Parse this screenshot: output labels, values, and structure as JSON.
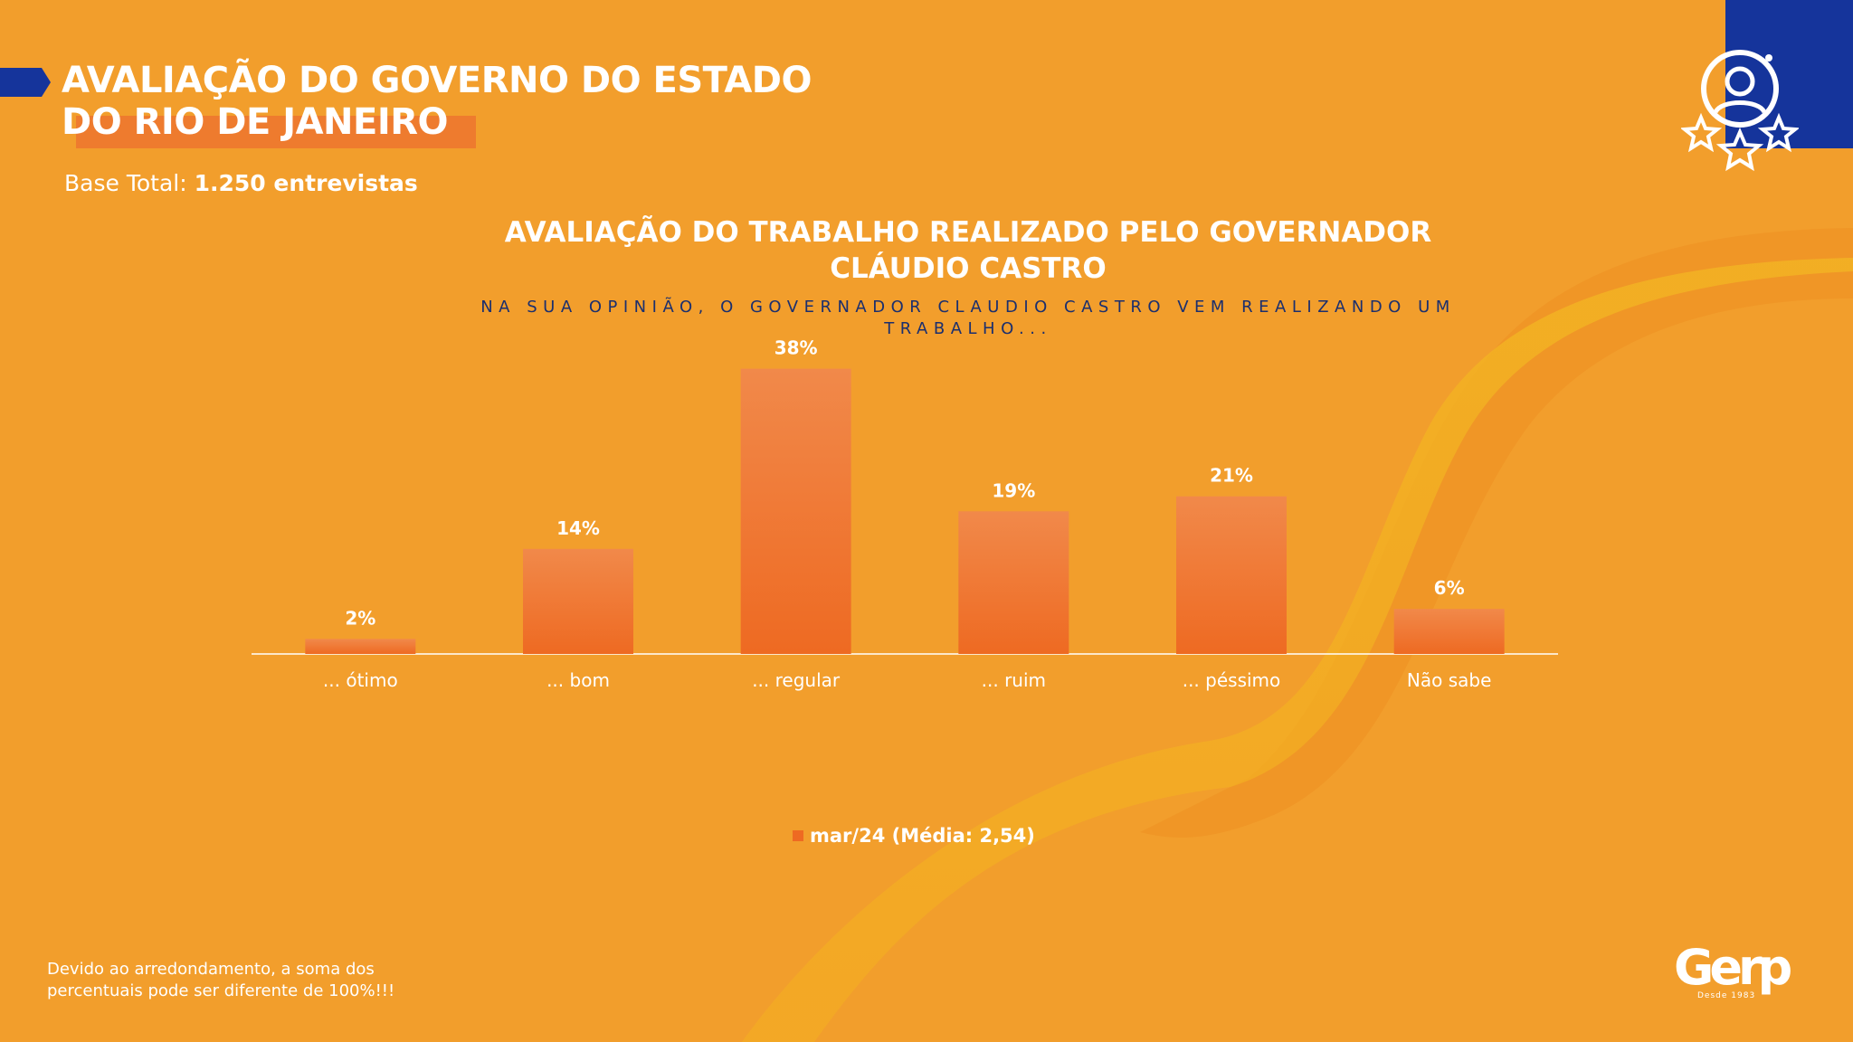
{
  "header": {
    "title": "AVALIAÇÃO DO GOVERNO DO ESTADO DO RIO DE JANEIRO",
    "base_label": "Base Total:",
    "base_value": "1.250 entrevistas"
  },
  "icons": {
    "badge": "user-award-icon"
  },
  "chart_data": {
    "type": "bar",
    "title": "AVALIAÇÃO DO TRABALHO REALIZADO PELO GOVERNADOR CLÁUDIO CASTRO",
    "subtitle": "NA SUA OPINIÃO, O GOVERNADOR CLAUDIO CASTRO VEM REALIZANDO UM TRABALHO...",
    "categories": [
      "... ótimo",
      "... bom",
      "... regular",
      "... ruim",
      "... péssimo",
      "Não sabe"
    ],
    "series": [
      {
        "name": "mar/24 (Média: 2,54)",
        "values": [
          2,
          14,
          38,
          19,
          21,
          6
        ],
        "labels": [
          "2%",
          "14%",
          "38%",
          "19%",
          "21%",
          "6%"
        ],
        "color": "#EE6A22"
      }
    ],
    "ylim": [
      0,
      40
    ],
    "grid": false,
    "legend": "bottom-center"
  },
  "footnote": "Devido ao arredondamento, a soma dos percentuais pode ser diferente de 100%!!!",
  "brand": {
    "logo": "Gerp",
    "tagline": "Desde 1983"
  },
  "colors": {
    "background": "#F29E2C",
    "accent_blue": "#15349B",
    "bar": "#EE6A22"
  }
}
